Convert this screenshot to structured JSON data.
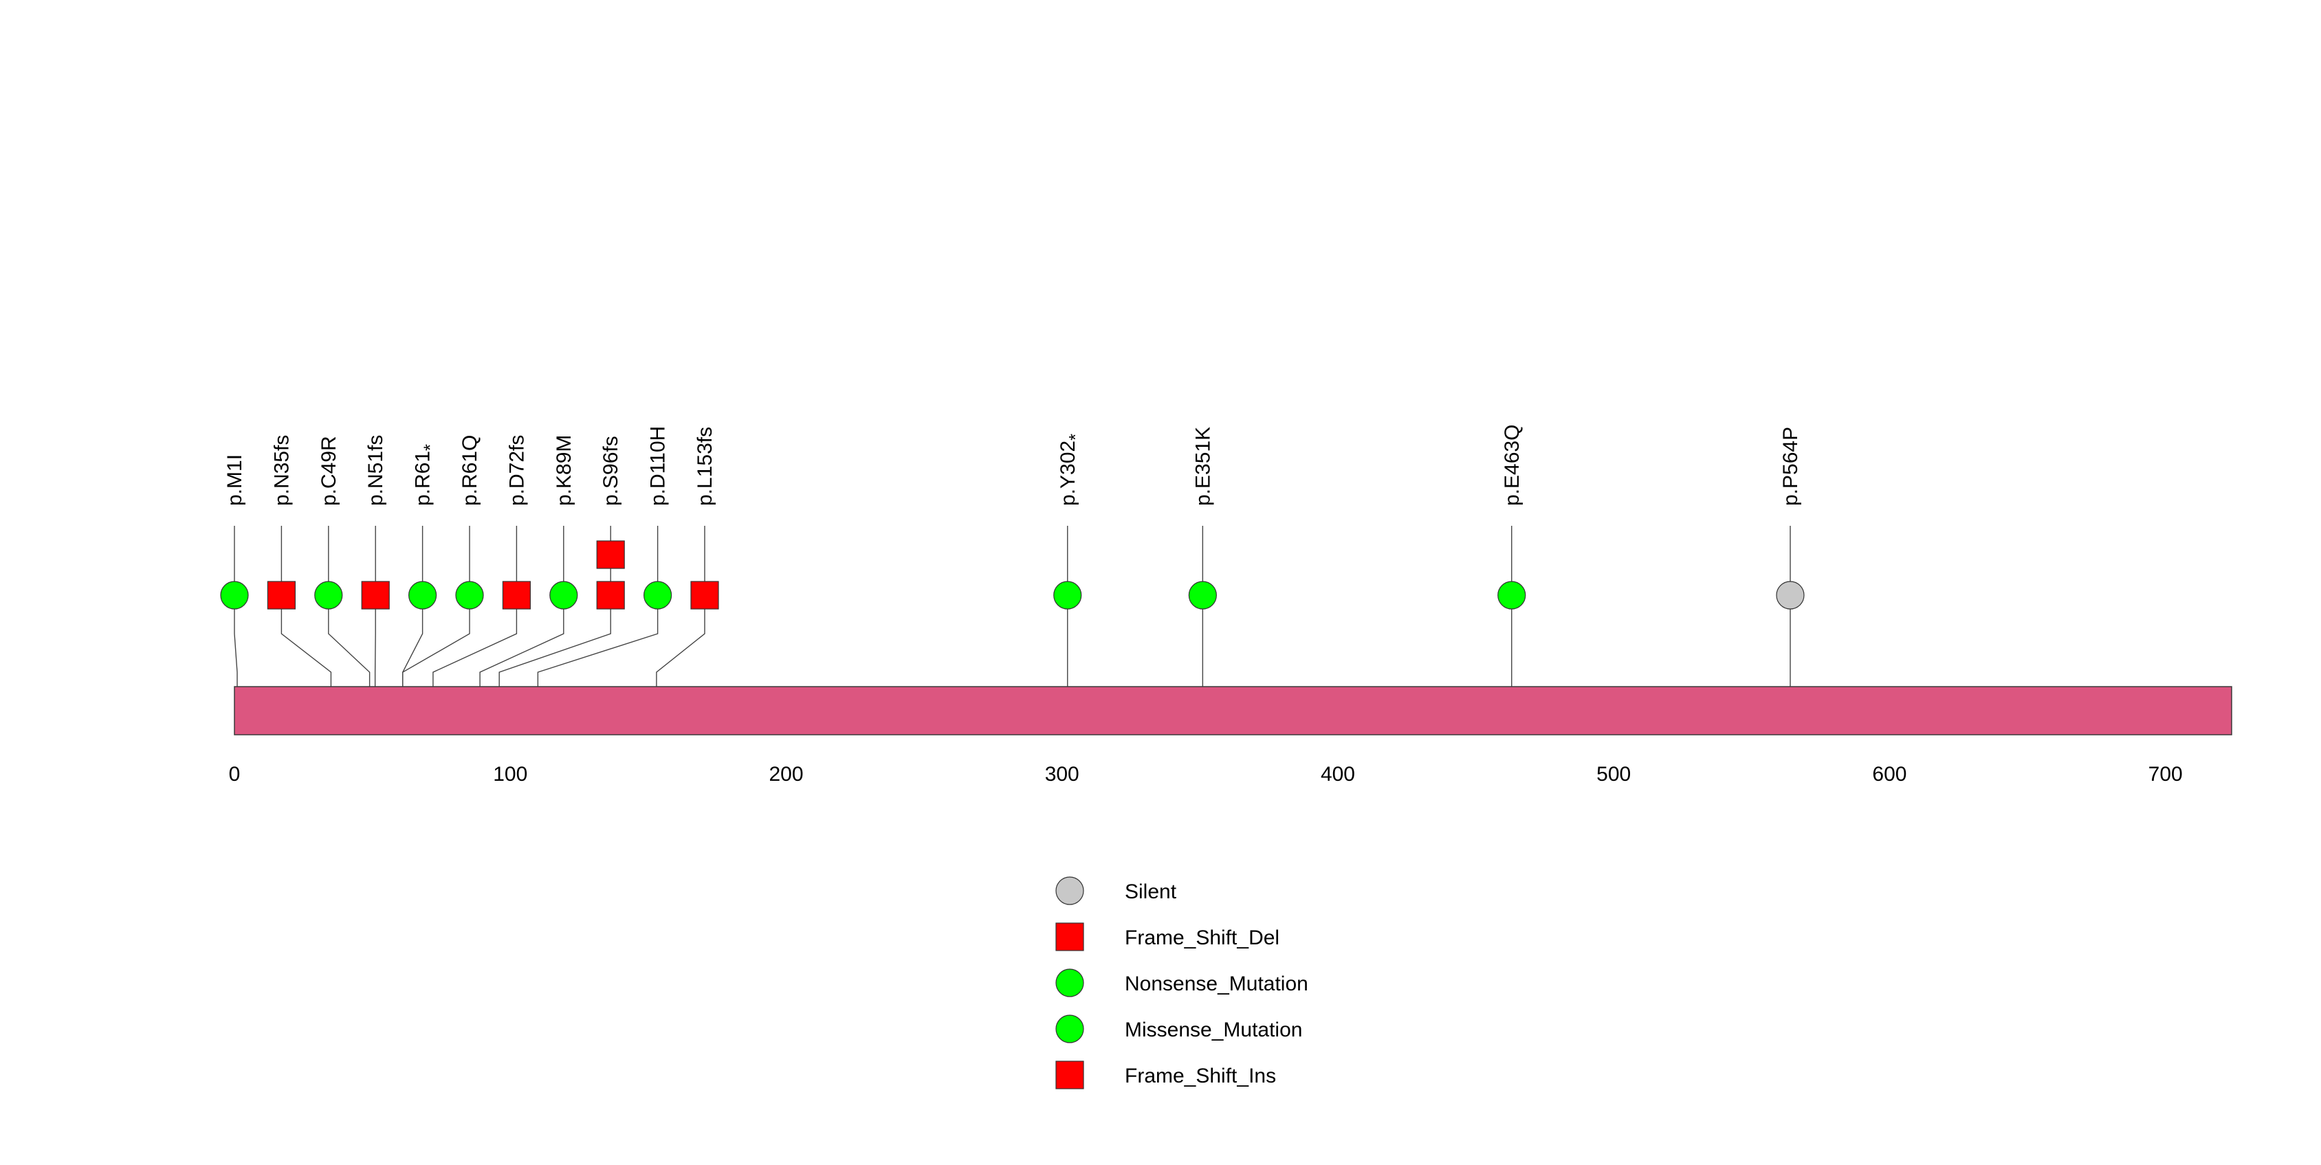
{
  "chart_data": {
    "type": "lollipop",
    "title": "",
    "xlabel": "",
    "ylabel": "",
    "protein_length": 724,
    "xlim": [
      0,
      724
    ],
    "x_ticks": [
      0,
      100,
      200,
      300,
      400,
      500,
      600,
      700
    ],
    "domain_color": "#DC5680",
    "mutations": [
      {
        "label": "p.M1I",
        "position": 1,
        "count": 1,
        "type": "Missense_Mutation",
        "shape": "circle",
        "color": "#00FF00",
        "star": false
      },
      {
        "label": "p.N35fs",
        "position": 35,
        "count": 1,
        "type": "Frame_Shift_Del",
        "shape": "square",
        "color": "#FF0000",
        "star": false
      },
      {
        "label": "p.C49R",
        "position": 49,
        "count": 1,
        "type": "Missense_Mutation",
        "shape": "circle",
        "color": "#00FF00",
        "star": false
      },
      {
        "label": "p.N51fs",
        "position": 51,
        "count": 1,
        "type": "Frame_Shift_Del",
        "shape": "square",
        "color": "#FF0000",
        "star": false
      },
      {
        "label": "p.R61",
        "position": 61,
        "count": 1,
        "type": "Nonsense_Mutation",
        "shape": "circle",
        "color": "#00FF00",
        "star": true
      },
      {
        "label": "p.R61Q",
        "position": 61,
        "count": 1,
        "type": "Missense_Mutation",
        "shape": "circle",
        "color": "#00FF00",
        "star": false
      },
      {
        "label": "p.D72fs",
        "position": 72,
        "count": 1,
        "type": "Frame_Shift_Del",
        "shape": "square",
        "color": "#FF0000",
        "star": false
      },
      {
        "label": "p.K89M",
        "position": 89,
        "count": 1,
        "type": "Missense_Mutation",
        "shape": "circle",
        "color": "#00FF00",
        "star": false
      },
      {
        "label": "p.S96fs",
        "position": 96,
        "count": 2,
        "type": "Frame_Shift_Del",
        "shape": "square",
        "color": "#FF0000",
        "star": false
      },
      {
        "label": "p.D110H",
        "position": 110,
        "count": 1,
        "type": "Missense_Mutation",
        "shape": "circle",
        "color": "#00FF00",
        "star": false
      },
      {
        "label": "p.L153fs",
        "position": 153,
        "count": 1,
        "type": "Frame_Shift_Del",
        "shape": "square",
        "color": "#FF0000",
        "star": false
      },
      {
        "label": "p.Y302",
        "position": 302,
        "count": 1,
        "type": "Nonsense_Mutation",
        "shape": "circle",
        "color": "#00FF00",
        "star": true
      },
      {
        "label": "p.E351K",
        "position": 351,
        "count": 1,
        "type": "Missense_Mutation",
        "shape": "circle",
        "color": "#00FF00",
        "star": false
      },
      {
        "label": "p.E463Q",
        "position": 463,
        "count": 1,
        "type": "Missense_Mutation",
        "shape": "circle",
        "color": "#00FF00",
        "star": false
      },
      {
        "label": "p.P564P",
        "position": 564,
        "count": 1,
        "type": "Silent",
        "shape": "circle",
        "color": "#C8C8C8",
        "star": false
      }
    ],
    "legend": [
      {
        "label": "Silent",
        "shape": "circle",
        "color": "#C8C8C8"
      },
      {
        "label": "Frame_Shift_Del",
        "shape": "square",
        "color": "#FF0000"
      },
      {
        "label": "Nonsense_Mutation",
        "shape": "circle",
        "color": "#00FF00"
      },
      {
        "label": "Missense_Mutation",
        "shape": "circle",
        "color": "#00FF00"
      },
      {
        "label": "Frame_Shift_Ins",
        "shape": "square",
        "color": "#FF0000"
      }
    ],
    "legend_position": "bottom-center"
  }
}
